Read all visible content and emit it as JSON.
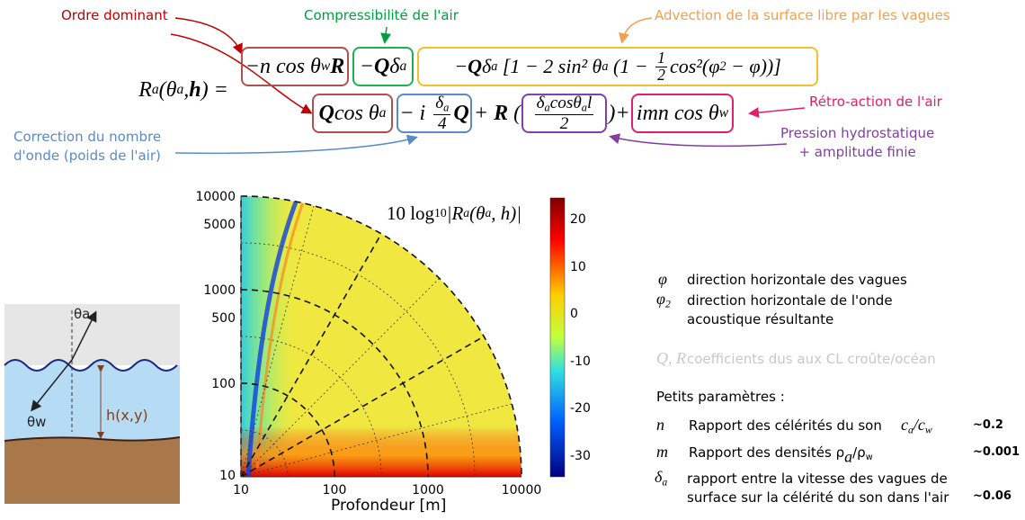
{
  "annotations": {
    "dominant": "Ordre dominant",
    "compressibility": "Compressibilité de l'air",
    "advection": "Advection de la surface libre par les vagues",
    "feedback": "Rétro-action de l'air",
    "correction": [
      "Correction du nombre",
      "d'onde (poids de l'air)"
    ],
    "pressure": [
      "Pression hydrostatique",
      "+ amplitude finie"
    ]
  },
  "equation": {
    "lhs": [
      "R",
      "a",
      "(θ",
      "a",
      ", ",
      "h",
      ") ="
    ],
    "terms": [
      [
        "−n cos θ",
        "w",
        " ",
        "R"
      ],
      [
        "− ",
        "Q",
        "δ",
        "a"
      ],
      [
        "− ",
        "Q",
        "δ",
        "a",
        " [1 − 2 sin² θ",
        "a",
        " (1 − ",
        "1",
        "2",
        "cos²(φ",
        "2",
        " − φ))]"
      ],
      [
        "Q",
        " cos θ",
        "a"
      ],
      [
        "− i ",
        "δ",
        "a",
        "4",
        " Q"
      ],
      [
        "+ ",
        "R",
        " ("
      ],
      [
        "δ",
        "a",
        "cosθ",
        "a",
        "l",
        "2"
      ],
      [
        ")",
        "+"
      ],
      [
        "imn cos θ",
        "w"
      ]
    ]
  },
  "plot": {
    "title": [
      "10 log",
      "10",
      " |R",
      "a",
      "(θ",
      "a",
      ", h)|"
    ],
    "xticks": [
      "10",
      "100",
      "1000",
      "10000"
    ],
    "yticks": [
      "10000",
      "5000",
      "1000",
      "500",
      "100",
      "10"
    ],
    "colorbar_ticks": [
      "20",
      "10",
      "0",
      "-10",
      "-20",
      "-30"
    ],
    "xlabel": "Profondeur [m]"
  },
  "diagram": {
    "labels": [
      "θa",
      "θw",
      "h(x,y)"
    ]
  },
  "legend": {
    "phi": [
      "φ",
      "direction horizontale des vagues"
    ],
    "phi2": [
      "φ",
      "2",
      "direction horizontale de l'onde",
      "acoustique résultante"
    ],
    "qr": [
      "Q, R",
      "coefficients dus aux CL croûte/océan"
    ],
    "small": "Petits paramètres :",
    "params": [
      [
        "n",
        "Rapport des célérités du son",
        "c",
        "a",
        "/c",
        "w",
        "~0.2"
      ],
      [
        "m",
        "Rapport des densités ρ",
        "a",
        "/ρ",
        "w",
        "~0.001"
      ],
      [
        "δ",
        "a",
        "rapport entre la vitesse des vagues de",
        "surface sur la célérité du son dans l'air",
        "~0.06"
      ]
    ]
  }
}
